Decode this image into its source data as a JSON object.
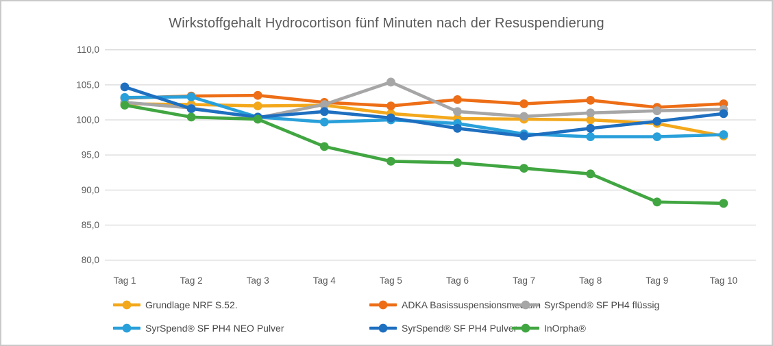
{
  "chart_data": {
    "type": "line",
    "title": "Wirkstoffgehalt Hydrocortison fünf Minuten nach der Resuspendierung",
    "categories": [
      "Tag 1",
      "Tag 2",
      "Tag 3",
      "Tag 4",
      "Tag 5",
      "Tag 6",
      "Tag 7",
      "Tag 8",
      "Tag 9",
      "Tag 10"
    ],
    "y_ticks": [
      {
        "value": 80,
        "label": "80,0"
      },
      {
        "value": 85,
        "label": "85,0"
      },
      {
        "value": 90,
        "label": "90,0"
      },
      {
        "value": 95,
        "label": "95,0"
      },
      {
        "value": 100,
        "label": "100,0"
      },
      {
        "value": 105,
        "label": "105,0"
      },
      {
        "value": 110,
        "label": "110,0"
      }
    ],
    "ylim": [
      80,
      110
    ],
    "grid": "horizontal-only",
    "legend_position": "bottom",
    "marker": "circle",
    "series": [
      {
        "name": "Grundlage NRF S.52.",
        "color": "#F3A81B",
        "values": [
          102.3,
          102.2,
          102.0,
          102.1,
          100.9,
          100.2,
          100.1,
          100.0,
          99.5,
          97.7
        ]
      },
      {
        "name": "ADKA Basissuspensionsmedium",
        "color": "#ED6E16",
        "values": [
          103.1,
          103.4,
          103.5,
          102.5,
          102.0,
          102.9,
          102.3,
          102.8,
          101.8,
          102.3
        ]
      },
      {
        "name": "SyrSpend® SF PH4 flüssig",
        "color": "#A6A6A6",
        "values": [
          102.5,
          101.7,
          100.3,
          102.2,
          105.4,
          101.2,
          100.5,
          101.0,
          101.3,
          101.5
        ]
      },
      {
        "name": "SyrSpend® SF PH4 NEO Pulver",
        "color": "#29A0DA",
        "values": [
          103.2,
          103.3,
          100.4,
          99.7,
          100.0,
          99.5,
          98.0,
          97.6,
          97.6,
          97.9
        ]
      },
      {
        "name": "SyrSpend® SF PH4 Pulver",
        "color": "#1E6FC0",
        "values": [
          104.7,
          101.6,
          100.4,
          101.2,
          100.3,
          98.8,
          97.7,
          98.8,
          99.8,
          100.9
        ]
      },
      {
        "name": "InOrpha®",
        "color": "#41A641",
        "values": [
          102.1,
          100.4,
          100.1,
          96.2,
          94.1,
          93.9,
          93.1,
          92.3,
          88.3,
          88.1
        ]
      }
    ],
    "axis_text_color": "#595959",
    "gridline_color": "#D9D9D9"
  }
}
